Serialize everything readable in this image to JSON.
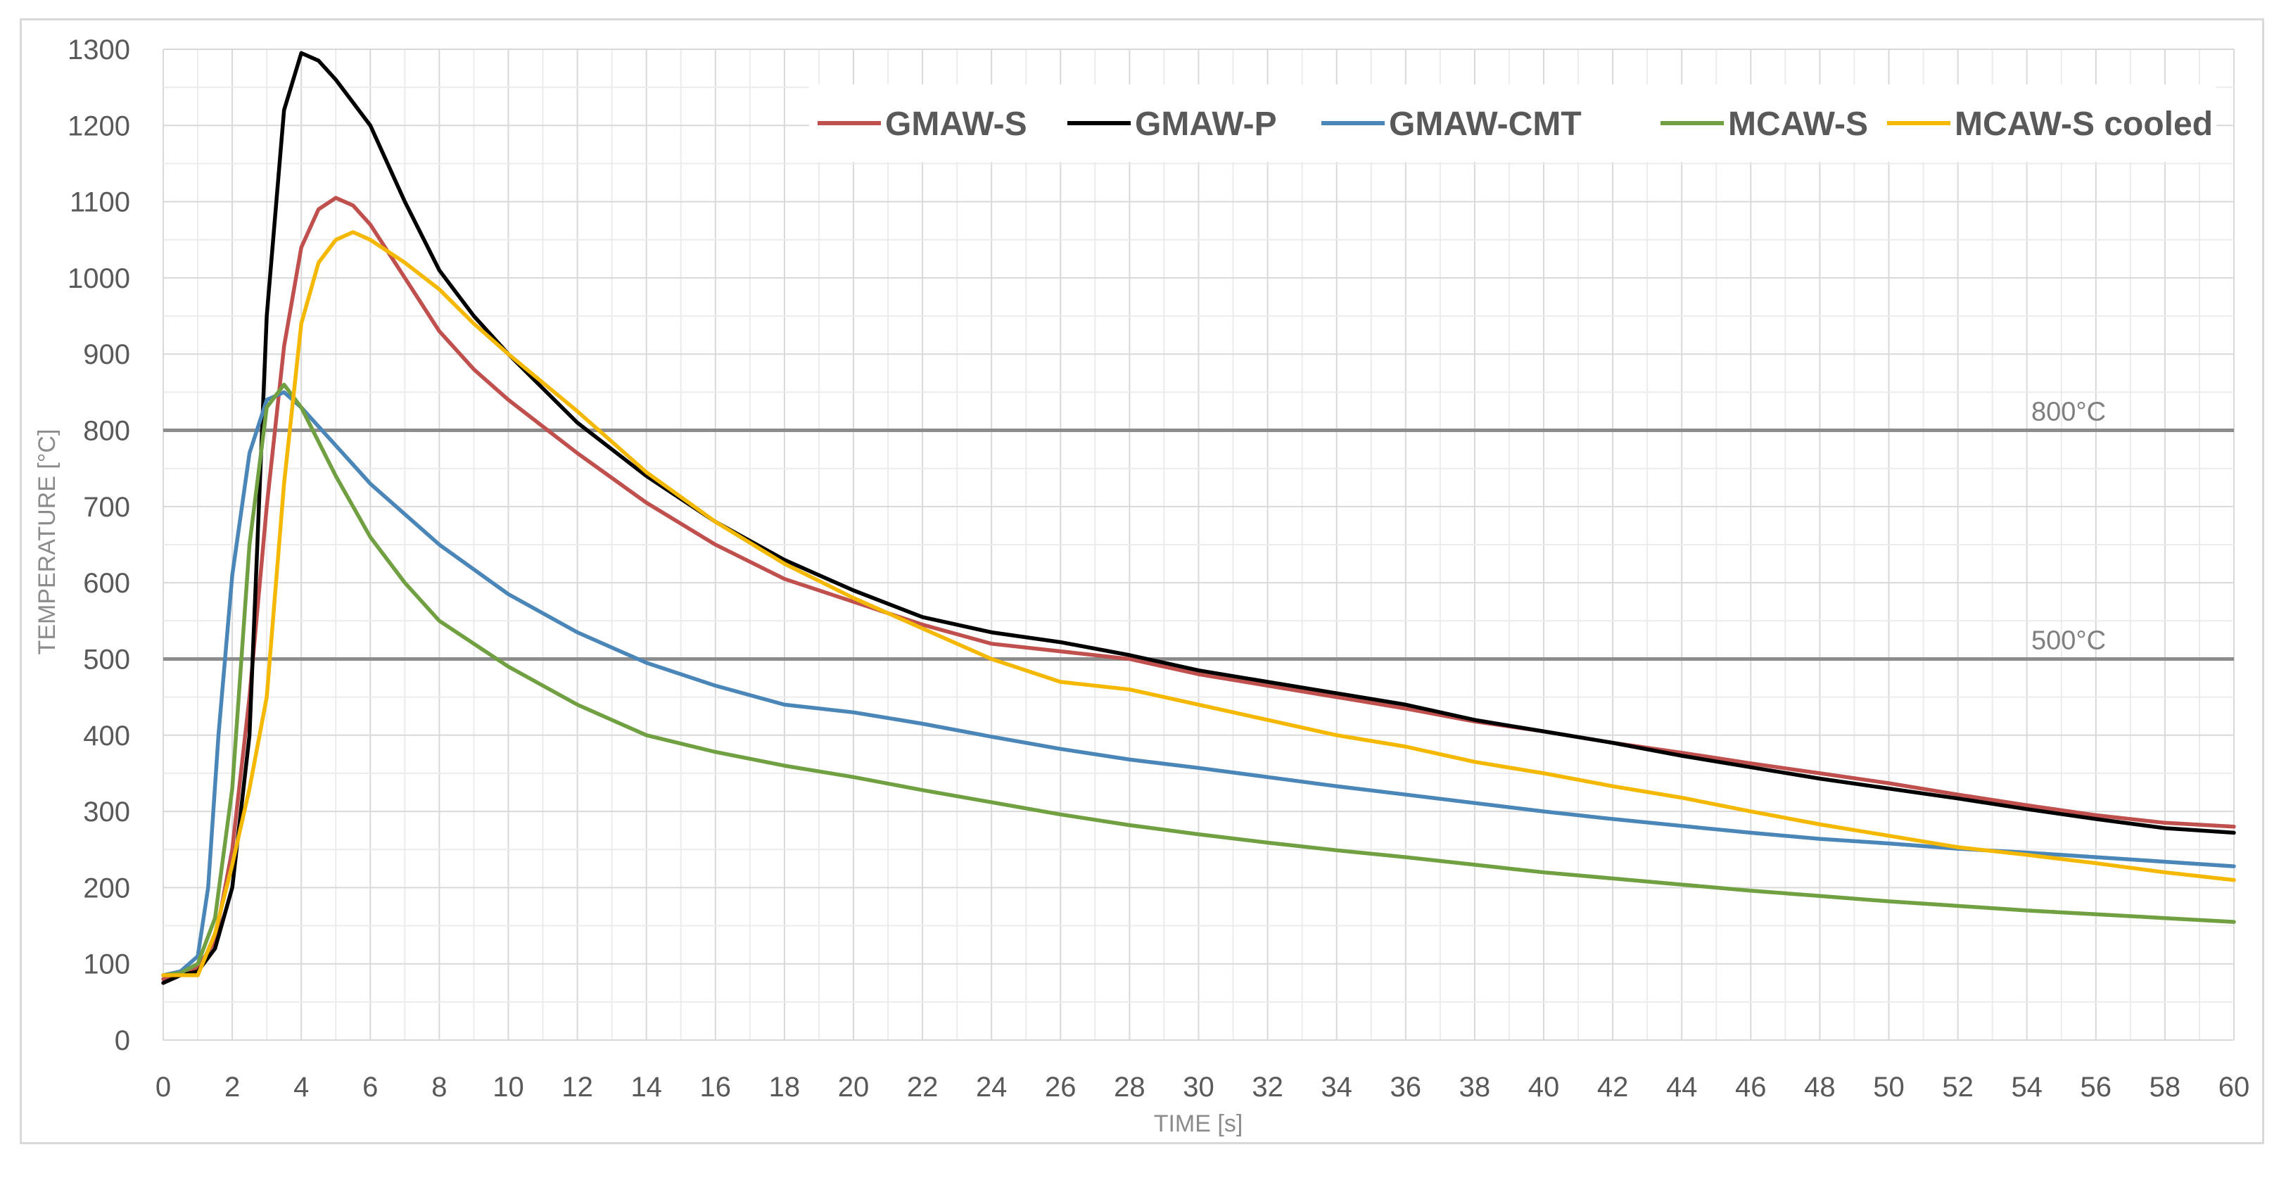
{
  "chart_data": {
    "type": "line",
    "xlabel": "TIME [s]",
    "ylabel": "TEMPERATURE [°C]",
    "xlim": [
      0,
      60
    ],
    "ylim": [
      0,
      1300
    ],
    "x_ticks": [
      0,
      2,
      4,
      6,
      8,
      10,
      12,
      14,
      16,
      18,
      20,
      22,
      24,
      26,
      28,
      30,
      32,
      34,
      36,
      38,
      40,
      42,
      44,
      46,
      48,
      50,
      52,
      54,
      56,
      58,
      60
    ],
    "y_ticks": [
      0,
      100,
      200,
      300,
      400,
      500,
      600,
      700,
      800,
      900,
      1000,
      1100,
      1200,
      1300
    ],
    "grid": true,
    "legend_position": "top-right",
    "reference_lines": [
      {
        "label": "800°C",
        "y": 800,
        "color": "#8c8c8c"
      },
      {
        "label": "500°C",
        "y": 500,
        "color": "#8c8c8c"
      }
    ],
    "series": [
      {
        "name": "GMAW-S",
        "color": "#c0504d",
        "points": [
          [
            0,
            80
          ],
          [
            0.5,
            88
          ],
          [
            1,
            95
          ],
          [
            1.5,
            130
          ],
          [
            2,
            250
          ],
          [
            2.5,
            450
          ],
          [
            3,
            700
          ],
          [
            3.5,
            910
          ],
          [
            4,
            1040
          ],
          [
            4.5,
            1090
          ],
          [
            5,
            1105
          ],
          [
            5.5,
            1095
          ],
          [
            6,
            1070
          ],
          [
            7,
            1000
          ],
          [
            8,
            930
          ],
          [
            9,
            880
          ],
          [
            10,
            840
          ],
          [
            12,
            770
          ],
          [
            14,
            705
          ],
          [
            16,
            650
          ],
          [
            18,
            605
          ],
          [
            20,
            575
          ],
          [
            22,
            545
          ],
          [
            24,
            520
          ],
          [
            26,
            510
          ],
          [
            28,
            500
          ],
          [
            30,
            480
          ],
          [
            32,
            465
          ],
          [
            34,
            450
          ],
          [
            36,
            435
          ],
          [
            38,
            418
          ],
          [
            40,
            405
          ],
          [
            42,
            390
          ],
          [
            44,
            377
          ],
          [
            46,
            363
          ],
          [
            48,
            350
          ],
          [
            50,
            337
          ],
          [
            52,
            322
          ],
          [
            54,
            308
          ],
          [
            56,
            295
          ],
          [
            58,
            285
          ],
          [
            60,
            280
          ]
        ]
      },
      {
        "name": "GMAW-P",
        "color": "#000000",
        "points": [
          [
            0,
            75
          ],
          [
            0.5,
            85
          ],
          [
            1,
            90
          ],
          [
            1.5,
            120
          ],
          [
            2,
            200
          ],
          [
            2.5,
            400
          ],
          [
            3,
            950
          ],
          [
            3.5,
            1220
          ],
          [
            4,
            1295
          ],
          [
            4.5,
            1285
          ],
          [
            5,
            1260
          ],
          [
            6,
            1200
          ],
          [
            7,
            1100
          ],
          [
            8,
            1010
          ],
          [
            9,
            950
          ],
          [
            10,
            900
          ],
          [
            12,
            810
          ],
          [
            14,
            740
          ],
          [
            16,
            680
          ],
          [
            18,
            630
          ],
          [
            20,
            590
          ],
          [
            22,
            555
          ],
          [
            24,
            535
          ],
          [
            26,
            522
          ],
          [
            28,
            505
          ],
          [
            30,
            485
          ],
          [
            32,
            470
          ],
          [
            34,
            455
          ],
          [
            36,
            440
          ],
          [
            38,
            420
          ],
          [
            40,
            405
          ],
          [
            42,
            390
          ],
          [
            44,
            373
          ],
          [
            46,
            358
          ],
          [
            48,
            343
          ],
          [
            50,
            330
          ],
          [
            52,
            317
          ],
          [
            54,
            303
          ],
          [
            56,
            290
          ],
          [
            58,
            278
          ],
          [
            60,
            272
          ]
        ]
      },
      {
        "name": "GMAW-CMT",
        "color": "#4a86b8",
        "points": [
          [
            0,
            85
          ],
          [
            0.5,
            90
          ],
          [
            1,
            110
          ],
          [
            1.3,
            200
          ],
          [
            1.6,
            400
          ],
          [
            2,
            610
          ],
          [
            2.5,
            770
          ],
          [
            3,
            840
          ],
          [
            3.5,
            850
          ],
          [
            4,
            830
          ],
          [
            5,
            780
          ],
          [
            6,
            730
          ],
          [
            8,
            650
          ],
          [
            10,
            585
          ],
          [
            12,
            535
          ],
          [
            14,
            495
          ],
          [
            16,
            465
          ],
          [
            18,
            440
          ],
          [
            20,
            430
          ],
          [
            22,
            415
          ],
          [
            24,
            398
          ],
          [
            26,
            382
          ],
          [
            28,
            368
          ],
          [
            30,
            357
          ],
          [
            32,
            345
          ],
          [
            34,
            333
          ],
          [
            36,
            322
          ],
          [
            38,
            311
          ],
          [
            40,
            300
          ],
          [
            42,
            290
          ],
          [
            44,
            281
          ],
          [
            46,
            272
          ],
          [
            48,
            264
          ],
          [
            50,
            258
          ],
          [
            52,
            251
          ],
          [
            54,
            246
          ],
          [
            56,
            240
          ],
          [
            58,
            234
          ],
          [
            60,
            228
          ]
        ]
      },
      {
        "name": "MCAW-S",
        "color": "#70a041",
        "points": [
          [
            0,
            85
          ],
          [
            0.5,
            88
          ],
          [
            1,
            100
          ],
          [
            1.5,
            160
          ],
          [
            2,
            330
          ],
          [
            2.5,
            650
          ],
          [
            3,
            830
          ],
          [
            3.5,
            860
          ],
          [
            4,
            830
          ],
          [
            5,
            740
          ],
          [
            6,
            660
          ],
          [
            7,
            600
          ],
          [
            8,
            550
          ],
          [
            10,
            490
          ],
          [
            12,
            440
          ],
          [
            14,
            400
          ],
          [
            16,
            378
          ],
          [
            18,
            360
          ],
          [
            20,
            345
          ],
          [
            22,
            328
          ],
          [
            24,
            312
          ],
          [
            26,
            296
          ],
          [
            28,
            282
          ],
          [
            30,
            270
          ],
          [
            32,
            259
          ],
          [
            34,
            249
          ],
          [
            36,
            240
          ],
          [
            38,
            230
          ],
          [
            40,
            220
          ],
          [
            42,
            212
          ],
          [
            44,
            204
          ],
          [
            46,
            196
          ],
          [
            48,
            189
          ],
          [
            50,
            182
          ],
          [
            52,
            176
          ],
          [
            54,
            170
          ],
          [
            56,
            165
          ],
          [
            58,
            160
          ],
          [
            60,
            155
          ]
        ]
      },
      {
        "name": "MCAW-S cooled",
        "color": "#f5b800",
        "points": [
          [
            0,
            85
          ],
          [
            0.5,
            85
          ],
          [
            1,
            85
          ],
          [
            1.5,
            140
          ],
          [
            2,
            230
          ],
          [
            2.5,
            330
          ],
          [
            3,
            450
          ],
          [
            3.5,
            730
          ],
          [
            4,
            940
          ],
          [
            4.5,
            1020
          ],
          [
            5,
            1050
          ],
          [
            5.5,
            1060
          ],
          [
            6,
            1050
          ],
          [
            7,
            1020
          ],
          [
            8,
            985
          ],
          [
            9,
            940
          ],
          [
            10,
            900
          ],
          [
            12,
            825
          ],
          [
            14,
            745
          ],
          [
            16,
            680
          ],
          [
            18,
            625
          ],
          [
            20,
            580
          ],
          [
            22,
            540
          ],
          [
            24,
            500
          ],
          [
            26,
            470
          ],
          [
            28,
            460
          ],
          [
            30,
            440
          ],
          [
            32,
            420
          ],
          [
            34,
            400
          ],
          [
            36,
            385
          ],
          [
            38,
            365
          ],
          [
            40,
            350
          ],
          [
            42,
            333
          ],
          [
            44,
            318
          ],
          [
            46,
            300
          ],
          [
            48,
            283
          ],
          [
            50,
            268
          ],
          [
            52,
            253
          ],
          [
            54,
            243
          ],
          [
            56,
            232
          ],
          [
            58,
            220
          ],
          [
            60,
            210
          ]
        ]
      }
    ]
  }
}
